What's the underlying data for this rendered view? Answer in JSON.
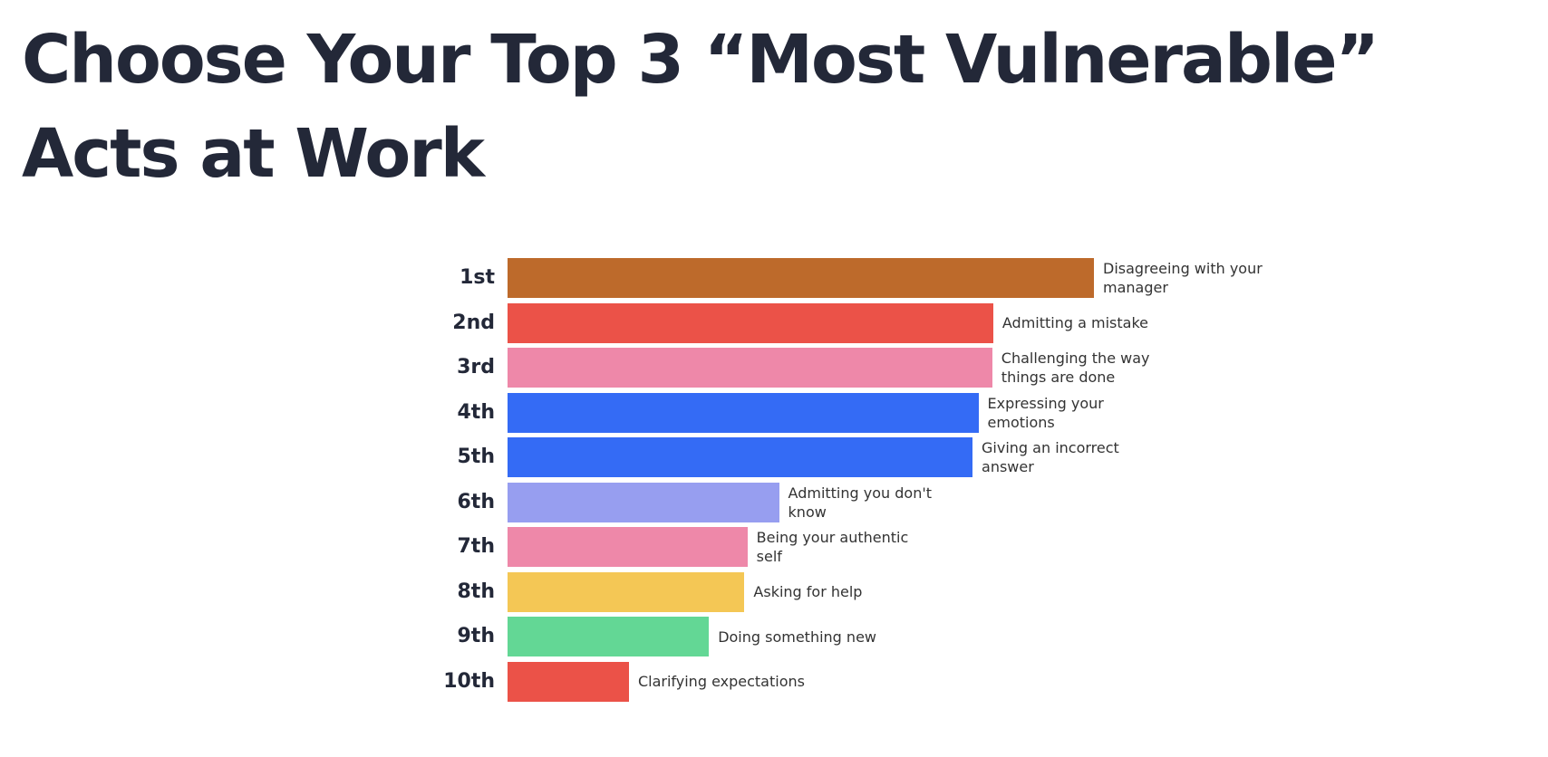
{
  "chart_data": {
    "type": "bar",
    "orientation": "horizontal",
    "title": "Choose Your Top 3 “Most Vulnerable” Acts at Work",
    "categories": [
      "1st",
      "2nd",
      "3rd",
      "4th",
      "5th",
      "6th",
      "7th",
      "8th",
      "9th",
      "10th"
    ],
    "labels": [
      "Disagreeing with your manager",
      "Admitting a mistake",
      "Challenging the way things are done",
      "Expressing your emotions",
      "Giving an incorrect answer",
      "Admitting you don't know",
      "Being your authentic self",
      "Asking for help",
      "Doing something new",
      "Clarifying expectations"
    ],
    "values": [
      594,
      492,
      491,
      477,
      471,
      275,
      243,
      240,
      204,
      123
    ],
    "colors": [
      "#bd6a2b",
      "#eb5248",
      "#ee88a9",
      "#346bf5",
      "#346bf5",
      "#979ef0",
      "#ee88a9",
      "#f4c755",
      "#63d795",
      "#eb5248"
    ]
  }
}
